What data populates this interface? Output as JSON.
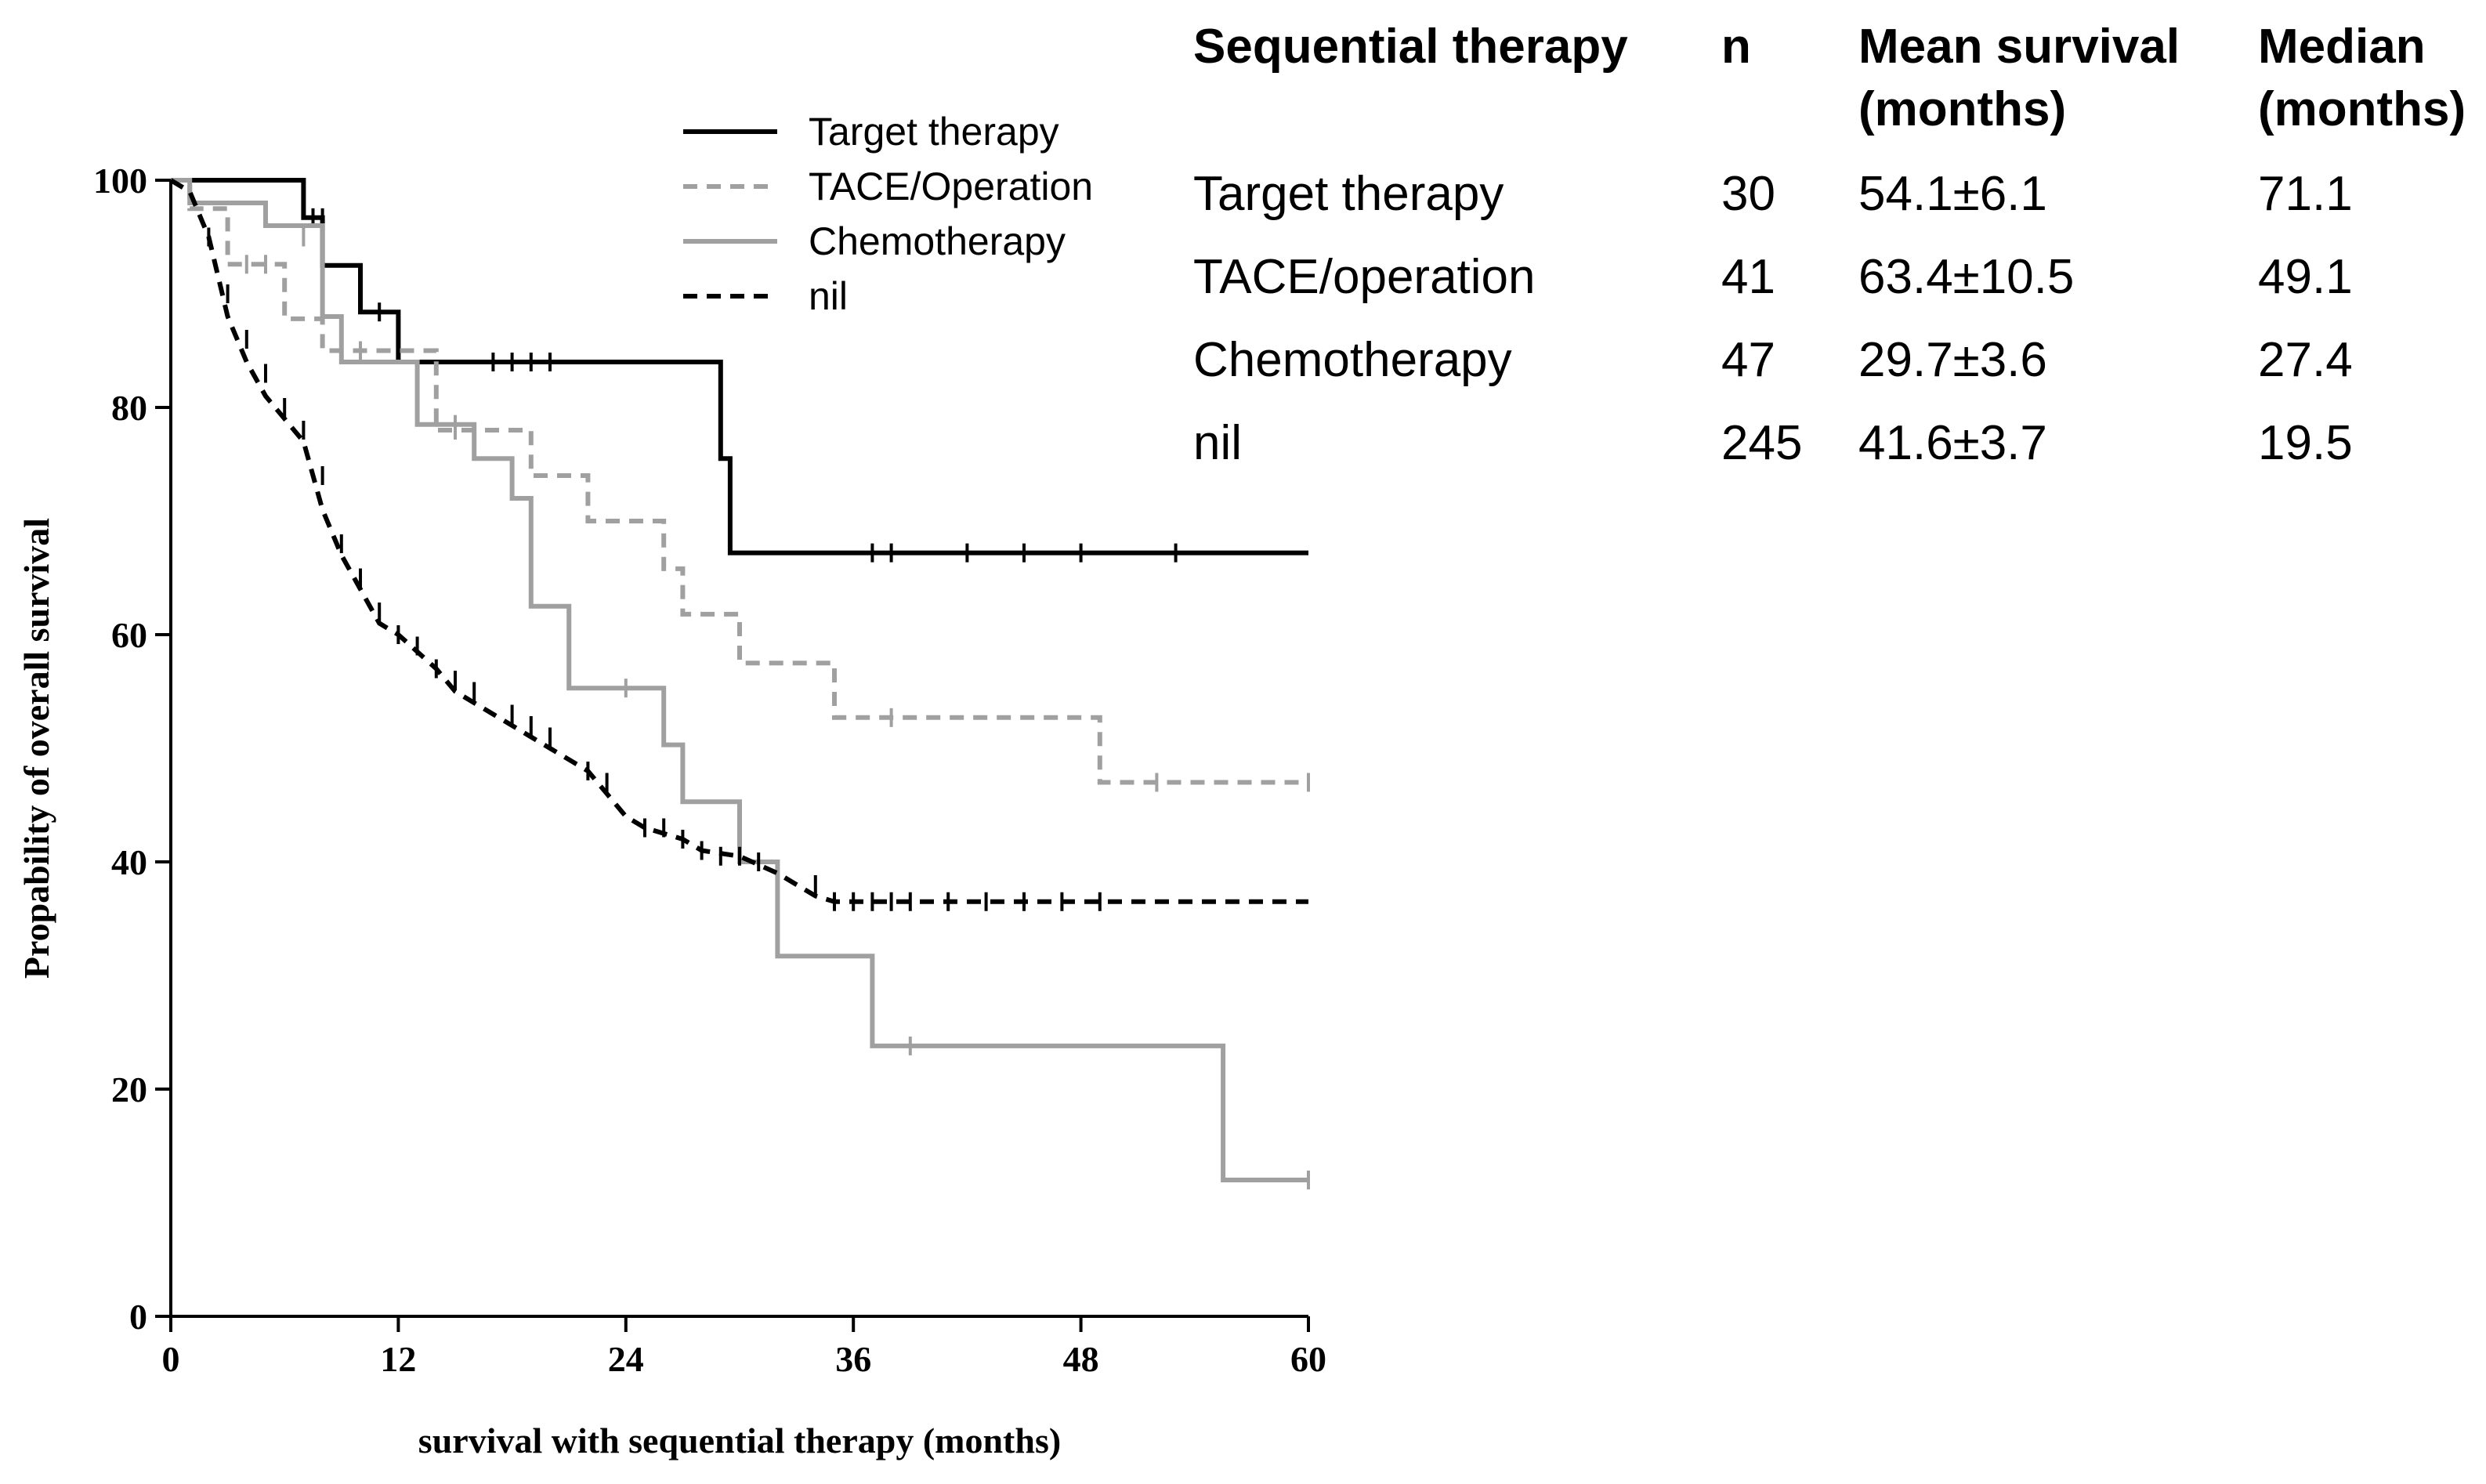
{
  "chart_data": {
    "type": "line",
    "subtype": "kaplan-meier",
    "xlabel": "survival with sequential therapy (months)",
    "ylabel": "Propability of overall survival",
    "xlim": [
      0,
      60
    ],
    "ylim": [
      0,
      100
    ],
    "xticks": [
      0,
      12,
      24,
      36,
      48,
      60
    ],
    "yticks": [
      0,
      20,
      40,
      60,
      80,
      100
    ],
    "legend": {
      "position": "top-center",
      "entries": [
        {
          "label": "Target therapy",
          "style": "solid",
          "color": "#000000"
        },
        {
          "label": "TACE/Operation",
          "style": "dashed",
          "color": "#a0a0a0"
        },
        {
          "label": "Chemotherapy",
          "style": "solid",
          "color": "#a0a0a0"
        },
        {
          "label": "nil",
          "style": "dashed",
          "color": "#000000"
        }
      ]
    },
    "series": [
      {
        "name": "Target therapy",
        "style": "solid",
        "color": "#000000",
        "steps": [
          [
            0,
            100
          ],
          [
            7,
            100
          ],
          [
            7,
            96.7
          ],
          [
            8,
            96.7
          ],
          [
            8,
            92.5
          ],
          [
            10,
            92.5
          ],
          [
            10,
            88.4
          ],
          [
            12,
            88.4
          ],
          [
            12,
            84
          ],
          [
            29,
            84
          ],
          [
            29,
            75.5
          ],
          [
            29.5,
            75.5
          ],
          [
            29.5,
            67.2
          ],
          [
            60,
            67.2
          ]
        ],
        "censored": [
          [
            7.5,
            96.7
          ],
          [
            8,
            96.7
          ],
          [
            11,
            88.4
          ],
          [
            17,
            84
          ],
          [
            18,
            84
          ],
          [
            19,
            84
          ],
          [
            20,
            84
          ],
          [
            37,
            67.2
          ],
          [
            38,
            67.2
          ],
          [
            42,
            67.2
          ],
          [
            45,
            67.2
          ],
          [
            48,
            67.2
          ],
          [
            53,
            67.2
          ]
        ]
      },
      {
        "name": "TACE/Operation",
        "style": "dashed",
        "color": "#a0a0a0",
        "steps": [
          [
            0,
            100
          ],
          [
            1,
            100
          ],
          [
            1,
            97.5
          ],
          [
            3,
            97.5
          ],
          [
            3,
            92.6
          ],
          [
            6,
            92.6
          ],
          [
            6,
            87.8
          ],
          [
            8,
            87.8
          ],
          [
            8,
            85
          ],
          [
            14,
            85
          ],
          [
            14,
            78
          ],
          [
            19,
            78
          ],
          [
            19,
            74
          ],
          [
            22,
            74
          ],
          [
            22,
            70
          ],
          [
            26,
            70
          ],
          [
            26,
            65.8
          ],
          [
            27,
            65.8
          ],
          [
            27,
            61.8
          ],
          [
            30,
            61.8
          ],
          [
            30,
            57.5
          ],
          [
            35,
            57.5
          ],
          [
            35,
            52.7
          ],
          [
            49,
            52.7
          ],
          [
            49,
            47
          ],
          [
            60,
            47
          ]
        ],
        "censored": [
          [
            4,
            92.6
          ],
          [
            5,
            92.6
          ],
          [
            10,
            85
          ],
          [
            15,
            78
          ],
          [
            38,
            52.7
          ],
          [
            52,
            47
          ],
          [
            60,
            47
          ]
        ]
      },
      {
        "name": "Chemotherapy",
        "style": "solid",
        "color": "#a0a0a0",
        "steps": [
          [
            0,
            100
          ],
          [
            1,
            100
          ],
          [
            1,
            98
          ],
          [
            5,
            98
          ],
          [
            5,
            96
          ],
          [
            8,
            96
          ],
          [
            8,
            88
          ],
          [
            9,
            88
          ],
          [
            9,
            84
          ],
          [
            13,
            84
          ],
          [
            13,
            78.5
          ],
          [
            16,
            78.5
          ],
          [
            16,
            75.5
          ],
          [
            18,
            75.5
          ],
          [
            18,
            72
          ],
          [
            19,
            72
          ],
          [
            19,
            62.5
          ],
          [
            21,
            62.5
          ],
          [
            21,
            55.3
          ],
          [
            26,
            55.3
          ],
          [
            26,
            50.3
          ],
          [
            27,
            50.3
          ],
          [
            27,
            45.3
          ],
          [
            30,
            45.3
          ],
          [
            30,
            40
          ],
          [
            32,
            40
          ],
          [
            32,
            31.7
          ],
          [
            37,
            31.7
          ],
          [
            37,
            23.8
          ],
          [
            55.5,
            23.8
          ],
          [
            55.5,
            12
          ],
          [
            60,
            12
          ]
        ],
        "censored": [
          [
            7,
            95
          ],
          [
            15,
            78.5
          ],
          [
            24,
            55.3
          ],
          [
            39,
            23.8
          ],
          [
            60,
            12
          ]
        ]
      },
      {
        "name": "nil",
        "style": "dashed",
        "color": "#000000",
        "steps": [
          [
            0,
            100
          ],
          [
            1,
            99
          ],
          [
            2,
            95
          ],
          [
            3,
            88
          ],
          [
            4,
            84
          ],
          [
            5,
            81
          ],
          [
            6,
            79
          ],
          [
            7,
            77
          ],
          [
            8,
            71
          ],
          [
            9,
            67
          ],
          [
            10,
            64
          ],
          [
            11,
            61
          ],
          [
            12,
            60
          ],
          [
            14,
            57
          ],
          [
            15,
            55
          ],
          [
            17,
            53
          ],
          [
            19,
            51
          ],
          [
            20,
            50
          ],
          [
            22,
            48
          ],
          [
            23,
            46
          ],
          [
            24,
            44
          ],
          [
            25,
            43
          ],
          [
            27,
            42
          ],
          [
            28,
            41
          ],
          [
            30,
            40.5
          ],
          [
            32,
            39
          ],
          [
            34,
            37
          ],
          [
            35,
            36.5
          ],
          [
            60,
            36.5
          ]
        ],
        "censored": [
          [
            2,
            95
          ],
          [
            3,
            90
          ],
          [
            4,
            86
          ],
          [
            5,
            83
          ],
          [
            6,
            80
          ],
          [
            7,
            78
          ],
          [
            8,
            74
          ],
          [
            9,
            68
          ],
          [
            10,
            65
          ],
          [
            11,
            62
          ],
          [
            12,
            60
          ],
          [
            13,
            59
          ],
          [
            14,
            57
          ],
          [
            15,
            56
          ],
          [
            16,
            55
          ],
          [
            18,
            53
          ],
          [
            19,
            52
          ],
          [
            20,
            51
          ],
          [
            22,
            48
          ],
          [
            23,
            47
          ],
          [
            25,
            43
          ],
          [
            26,
            43
          ],
          [
            27,
            42
          ],
          [
            28,
            41
          ],
          [
            29,
            40.5
          ],
          [
            30,
            40.5
          ],
          [
            31,
            40
          ],
          [
            34,
            38
          ],
          [
            35,
            36.5
          ],
          [
            36,
            36.5
          ],
          [
            37,
            36.5
          ],
          [
            38,
            36.5
          ],
          [
            39,
            36.5
          ],
          [
            41,
            36.5
          ],
          [
            43,
            36.5
          ],
          [
            45,
            36.5
          ],
          [
            47,
            36.5
          ],
          [
            49,
            36.5
          ]
        ]
      }
    ]
  },
  "summary_table": {
    "headers": {
      "therapy": "Sequential therapy",
      "n": "n",
      "mean_line1": "Mean survival",
      "mean_line2": "(months)",
      "median_line1": "Median",
      "median_line2": "(months)"
    },
    "rows": [
      {
        "therapy": "Target therapy",
        "n": "30",
        "mean": "54.1±6.1",
        "median": "71.1"
      },
      {
        "therapy": "TACE/operation",
        "n": "41",
        "mean": "63.4±10.5",
        "median": "49.1"
      },
      {
        "therapy": "Chemotherapy",
        "n": "47",
        "mean": "29.7±3.6",
        "median": "27.4"
      },
      {
        "therapy": "nil",
        "n": "245",
        "mean": "41.6±3.7",
        "median": "19.5"
      }
    ]
  }
}
